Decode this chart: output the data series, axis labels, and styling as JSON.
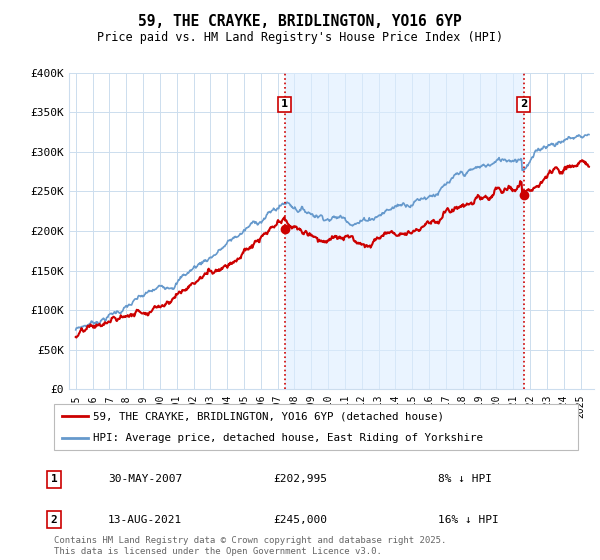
{
  "title": "59, THE CRAYKE, BRIDLINGTON, YO16 6YP",
  "subtitle": "Price paid vs. HM Land Registry's House Price Index (HPI)",
  "background_color": "#ffffff",
  "plot_bg_color": "#ffffff",
  "grid_color": "#ccddee",
  "hpi_color": "#6699cc",
  "hpi_fill_color": "#ddeeff",
  "price_color": "#cc0000",
  "ylim": [
    0,
    400000
  ],
  "yticks": [
    0,
    50000,
    100000,
    150000,
    200000,
    250000,
    300000,
    350000,
    400000
  ],
  "ytick_labels": [
    "£0",
    "£50K",
    "£100K",
    "£150K",
    "£200K",
    "£250K",
    "£300K",
    "£350K",
    "£400K"
  ],
  "sale1": {
    "date_label": "30-MAY-2007",
    "price": 202995,
    "hpi_diff": "8% ↓ HPI"
  },
  "sale2": {
    "date_label": "13-AUG-2021",
    "price": 245000,
    "hpi_diff": "16% ↓ HPI"
  },
  "sale1_x": 2007.42,
  "sale2_x": 2021.62,
  "vline_color": "#cc0000",
  "legend_label_price": "59, THE CRAYKE, BRIDLINGTON, YO16 6YP (detached house)",
  "legend_label_hpi": "HPI: Average price, detached house, East Riding of Yorkshire",
  "footer": "Contains HM Land Registry data © Crown copyright and database right 2025.\nThis data is licensed under the Open Government Licence v3.0.",
  "xmin": 1994.6,
  "xmax": 2025.8
}
